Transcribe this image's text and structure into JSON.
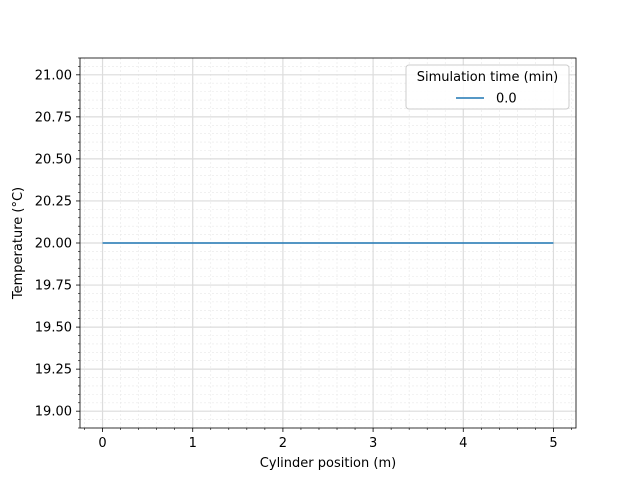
{
  "chart_data": {
    "type": "line",
    "title": "",
    "xlabel": "Cylinder position (m)",
    "ylabel": "Temperature (°C)",
    "xlim": [
      -0.25,
      5.25
    ],
    "ylim": [
      18.9,
      21.1
    ],
    "xticks": [
      0,
      1,
      2,
      3,
      4,
      5
    ],
    "xtick_labels": [
      "0",
      "1",
      "2",
      "3",
      "4",
      "5"
    ],
    "yticks": [
      19.0,
      19.25,
      19.5,
      19.75,
      20.0,
      20.25,
      20.5,
      20.75,
      21.0
    ],
    "ytick_labels": [
      "19.00",
      "19.25",
      "19.50",
      "19.75",
      "20.00",
      "20.25",
      "20.50",
      "20.75",
      "21.00"
    ],
    "grid": true,
    "minor_grid": true,
    "legend": {
      "title": "Simulation time (min)",
      "placement": "top-right"
    },
    "series": [
      {
        "name": "0.0",
        "color": "#1f77b4",
        "x": [
          0,
          5
        ],
        "y": [
          20.0,
          20.0
        ]
      }
    ]
  }
}
